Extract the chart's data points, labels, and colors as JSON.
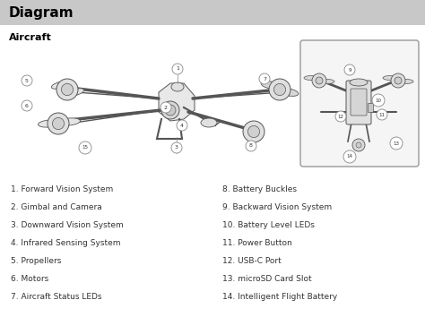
{
  "title": "Diagram",
  "subtitle": "Aircraft",
  "title_bg_color": "#c8c8c8",
  "title_text_color": "#000000",
  "page_bg_color": "#ffffff",
  "left_items": [
    "1. Forward Vision System",
    "2. Gimbal and Camera",
    "3. Downward Vision System",
    "4. Infrared Sensing System",
    "5. Propellers",
    "6. Motors",
    "7. Aircraft Status LEDs"
  ],
  "right_items": [
    "8. Battery Buckles",
    "9. Backward Vision System",
    "10. Battery Level LEDs",
    "11. Power Button",
    "12. USB-C Port",
    "13. microSD Card Slot",
    "14. Intelligent Flight Battery"
  ],
  "figsize": [
    4.74,
    3.54
  ],
  "dpi": 100,
  "title_fontsize": 11,
  "subtitle_fontsize": 8,
  "item_fontsize": 6.5,
  "border_color": "#999999",
  "line_color": "#555555",
  "callout_border": "#888888"
}
